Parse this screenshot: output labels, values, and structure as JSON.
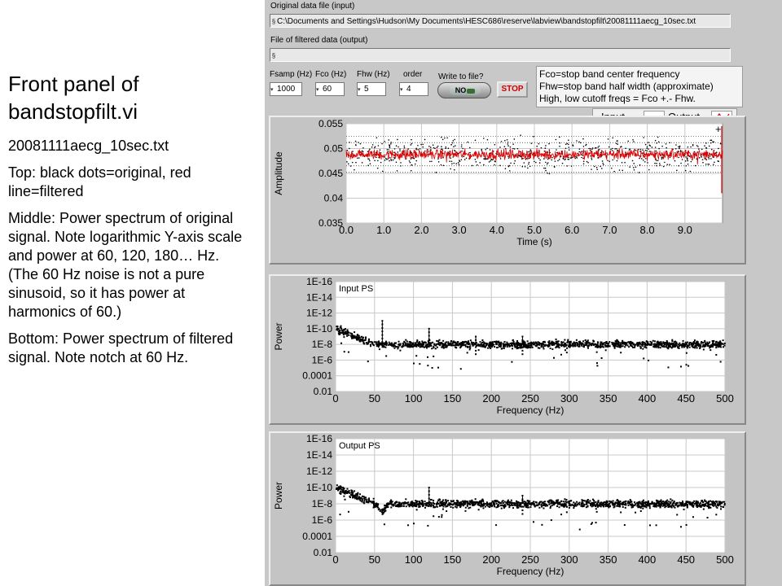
{
  "notes": {
    "title": "Front panel of bandstopfilt.vi",
    "filename": "20081111aecg_10sec.txt",
    "top": "Top: black dots=original, red line=filtered",
    "middle": "Middle: Power spectrum of original signal.  Note logarithmic Y-axis scale and power at 60, 120, 180… Hz.  (The 60 Hz noise is not a pure sinusoid, so it has power at harmonics of 60.)",
    "bottom": "Bottom: Power spectrum of filtered signal. Note notch at 60 Hz."
  },
  "panel": {
    "input_label": "Original data file (input)",
    "input_path": "C:\\Documents and Settings\\Hudson\\My Documents\\HESC686\\reserve\\labview\\bandstopfilt\\20081111aecg_10sec.txt",
    "output_label": "File of filtered data (output)",
    "output_path": "",
    "path_icon": "path-icon",
    "controls": {
      "fsamp_label": "Fsamp (Hz)",
      "fsamp_value": "1000",
      "fco_label": "Fco (Hz)",
      "fco_value": "60",
      "fhw_label": "Fhw (Hz)",
      "fhw_value": "5",
      "order_label": "order",
      "order_value": "4",
      "write_label": "Write to file?",
      "write_value": "NO",
      "stop_label": "STOP"
    },
    "info_lines": [
      "Fco=stop band center frequency",
      "Fhw=stop band half width (approximate)",
      "High, low cutoff freqs = Fco +.- Fhw."
    ],
    "legend": {
      "input": "Input",
      "output": "Output"
    },
    "colors": {
      "panel": "#c8c8c8",
      "plot_bg": "#ffffff",
      "grid": "#c8c8c8",
      "filtered": "#dd0000",
      "original": "#000000",
      "stop": "#d00000"
    }
  },
  "chart_data": [
    {
      "type": "line",
      "title": "",
      "xlabel": "Time (s)",
      "ylabel": "Amplitude",
      "xlim": [
        0,
        10
      ],
      "ylim": [
        0.035,
        0.055
      ],
      "x_ticks": [
        "0.0",
        "1.0",
        "2.0",
        "3.0",
        "4.0",
        "5.0",
        "6.0",
        "7.0",
        "8.0",
        "9.0"
      ],
      "y_ticks": [
        "0.035",
        "0.04",
        "0.045",
        "0.05",
        "0.055"
      ],
      "grid": true,
      "series": [
        {
          "name": "Input",
          "style": "dots",
          "color": "#000000",
          "baseline": 0.0488,
          "spread": 0.0045
        },
        {
          "name": "Output",
          "style": "line",
          "color": "#dd0000",
          "baseline": 0.0488,
          "spread": 0.0015
        }
      ]
    },
    {
      "type": "scatter",
      "title": "Input PS",
      "xlabel": "Frequency (Hz)",
      "ylabel": "Power",
      "xlim": [
        0,
        500
      ],
      "ylim": [
        1e-16,
        0.01
      ],
      "yscale": "log",
      "x_ticks": [
        "0",
        "50",
        "100",
        "150",
        "200",
        "250",
        "300",
        "350",
        "400",
        "450",
        "500"
      ],
      "y_ticks": [
        "0.01",
        "0.0001",
        "1E-6",
        "1E-8",
        "1E-10",
        "1E-12",
        "1E-14",
        "1E-16"
      ],
      "grid": true,
      "noise_floor": 1e-10,
      "low_freq_power": 1e-08,
      "peaks": [
        {
          "x": 60,
          "y": 1e-07
        },
        {
          "x": 120,
          "y": 1e-08
        },
        {
          "x": 180,
          "y": 1e-09
        },
        {
          "x": 240,
          "y": 1e-09
        }
      ]
    },
    {
      "type": "scatter",
      "title": "Output PS",
      "xlabel": "Frequency (Hz)",
      "ylabel": "Power",
      "xlim": [
        0,
        500
      ],
      "ylim": [
        1e-16,
        0.01
      ],
      "yscale": "log",
      "x_ticks": [
        "0",
        "50",
        "100",
        "150",
        "200",
        "250",
        "300",
        "350",
        "400",
        "450",
        "500"
      ],
      "y_ticks": [
        "0.01",
        "0.0001",
        "1E-6",
        "1E-8",
        "1E-10",
        "1E-12",
        "1E-14",
        "1E-16"
      ],
      "grid": true,
      "noise_floor": 1e-10,
      "low_freq_power": 1e-08,
      "notch": {
        "x": 60,
        "y": 1e-11
      },
      "peaks": [
        {
          "x": 120,
          "y": 1e-08
        },
        {
          "x": 240,
          "y": 1e-09
        }
      ]
    }
  ]
}
